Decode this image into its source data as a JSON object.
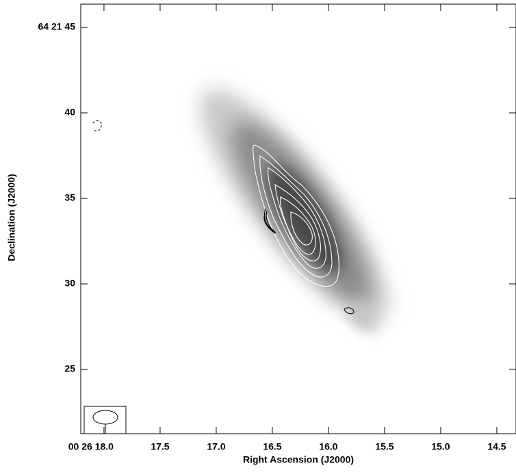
{
  "chart_data": {
    "type": "contour",
    "x_label": "Right Ascension (J2000)",
    "y_label": "Declination (J2000)",
    "xlim": [
      18.207,
      14.329
    ],
    "ylim": [
      21.24,
      46.36
    ],
    "xticks": [
      {
        "value": 18.0,
        "label": "00 26 18.0"
      },
      17.5,
      {
        "value": 17.0,
        "label": "17.0"
      },
      16.5,
      {
        "value": 16.0,
        "label": "16.0"
      },
      15.5,
      {
        "value": 15.0,
        "label": "15.0"
      },
      14.5
    ],
    "yticks": [
      25,
      30,
      35,
      40,
      {
        "value": 45,
        "label": "64 21 45"
      }
    ]
  }
}
